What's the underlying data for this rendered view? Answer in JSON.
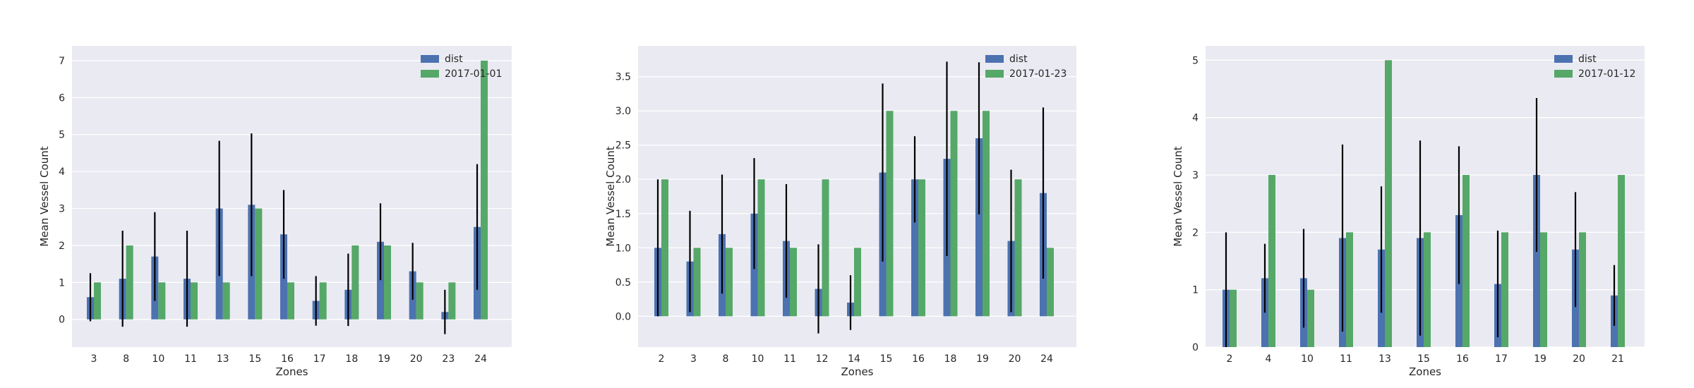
{
  "colors": {
    "dist": "#4c72b0",
    "date": "#55a868",
    "panel_bg": "#eaeaf2",
    "grid": "#ffffff",
    "error_bar": "#000000"
  },
  "chart_data": [
    {
      "type": "bar",
      "xlabel": "Zones",
      "ylabel": "Mean Vessel Count",
      "categories": [
        "3",
        "8",
        "10",
        "11",
        "13",
        "15",
        "16",
        "17",
        "18",
        "19",
        "20",
        "23",
        "24"
      ],
      "ylim": [
        -0.75,
        7.4
      ],
      "yticks": [
        0,
        1,
        2,
        3,
        4,
        5,
        6,
        7
      ],
      "legend_position": "top-right",
      "grid": true,
      "series": [
        {
          "name": "dist",
          "values": [
            0.6,
            1.1,
            1.7,
            1.1,
            3.0,
            3.1,
            2.3,
            0.5,
            0.8,
            2.1,
            1.3,
            0.2,
            2.5
          ],
          "errors": [
            0.65,
            1.3,
            1.2,
            1.3,
            1.83,
            1.93,
            1.2,
            0.67,
            0.98,
            1.04,
            0.77,
            0.6,
            1.7
          ]
        },
        {
          "name": "2017-01-01",
          "values": [
            1,
            2,
            1,
            1,
            1,
            3,
            1,
            1,
            2,
            2,
            1,
            1,
            7
          ]
        }
      ]
    },
    {
      "type": "bar",
      "xlabel": "Zones",
      "ylabel": "Mean Vessel Count",
      "categories": [
        "2",
        "3",
        "8",
        "10",
        "11",
        "12",
        "14",
        "15",
        "16",
        "18",
        "19",
        "20",
        "24"
      ],
      "ylim": [
        -0.45,
        3.95
      ],
      "yticks": [
        0.0,
        0.5,
        1.0,
        1.5,
        2.0,
        2.5,
        3.0,
        3.5
      ],
      "ytick_labels": [
        "0.0",
        "0.5",
        "1.0",
        "1.5",
        "2.0",
        "2.5",
        "3.0",
        "3.5"
      ],
      "legend_position": "top-right",
      "grid": true,
      "series": [
        {
          "name": "dist",
          "values": [
            1.0,
            0.8,
            1.2,
            1.5,
            1.1,
            0.4,
            0.2,
            2.1,
            2.0,
            2.3,
            2.6,
            1.1,
            1.8
          ],
          "errors": [
            1.0,
            0.74,
            0.87,
            0.81,
            0.83,
            0.65,
            0.4,
            1.3,
            0.63,
            1.42,
            1.11,
            1.04,
            1.25
          ]
        },
        {
          "name": "2017-01-23",
          "values": [
            2,
            1,
            1,
            2,
            1,
            2,
            1,
            3,
            2,
            3,
            3,
            2,
            1
          ]
        }
      ]
    },
    {
      "type": "bar",
      "xlabel": "Zones",
      "ylabel": "Mean Vessel Count",
      "categories": [
        "2",
        "4",
        "10",
        "11",
        "13",
        "15",
        "16",
        "17",
        "19",
        "20",
        "21"
      ],
      "ylim": [
        0,
        5.25
      ],
      "yticks": [
        0,
        1,
        2,
        3,
        4,
        5
      ],
      "legend_position": "top-right",
      "grid": true,
      "series": [
        {
          "name": "dist",
          "values": [
            1.0,
            1.2,
            1.2,
            1.9,
            1.7,
            1.9,
            2.3,
            1.1,
            3.0,
            1.7,
            0.9
          ],
          "errors": [
            1.0,
            0.6,
            0.86,
            1.63,
            1.1,
            1.7,
            1.2,
            0.93,
            1.34,
            1.0,
            0.53
          ]
        },
        {
          "name": "2017-01-12",
          "values": [
            1,
            3,
            1,
            2,
            5,
            2,
            3,
            2,
            2,
            2,
            3
          ]
        }
      ]
    }
  ]
}
